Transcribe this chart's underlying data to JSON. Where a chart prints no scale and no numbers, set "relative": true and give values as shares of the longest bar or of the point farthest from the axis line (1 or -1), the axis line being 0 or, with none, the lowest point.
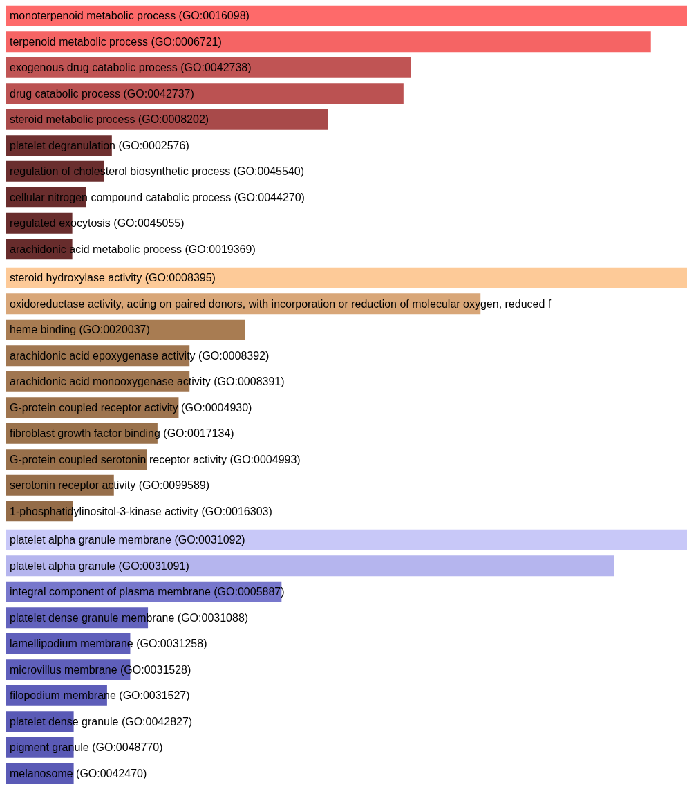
{
  "chart_data": [
    {
      "type": "bar",
      "orientation": "horizontal",
      "relative": true,
      "categories": [
        "monoterpenoid metabolic process (GO:0016098)",
        "terpenoid metabolic process (GO:0006721)",
        "exogenous drug catabolic process (GO:0042738)",
        "drug catabolic process (GO:0042737)",
        "steroid metabolic process (GO:0008202)",
        "platelet degranulation (GO:0002576)",
        "regulation of cholesterol biosynthetic process (GO:0045540)",
        "cellular nitrogen compound catabolic process (GO:0044270)",
        "regulated exocytosis (GO:0045055)",
        "arachidonic acid metabolic process (GO:0019369)"
      ],
      "values": [
        1,
        0.947,
        0.595,
        0.584,
        0.473,
        0.156,
        0.145,
        0.118,
        0.098,
        0.098
      ],
      "colors": [
        "#fe6a6a",
        "#f56464",
        "#c05454",
        "#bb5252",
        "#a84a4a",
        "#6e3030",
        "#6a2e2e",
        "#692d2d",
        "#682d2d",
        "#672c2c"
      ]
    },
    {
      "type": "bar",
      "orientation": "horizontal",
      "relative": true,
      "categories": [
        "steroid hydroxylase activity (GO:0008395)",
        "oxidoreductase activity, acting on paired donors, with incorporation or reduction of molecular oxygen, reduced f",
        "heme binding (GO:0020037)",
        "arachidonic acid epoxygenase activity (GO:0008392)",
        "arachidonic acid monooxygenase activity (GO:0008391)",
        "G-protein coupled receptor activity (GO:0004930)",
        "fibroblast growth factor binding (GO:0017134)",
        "G-protein coupled serotonin receptor activity (GO:0004993)",
        "serotonin receptor activity (GO:0099589)",
        "1-phosphatidylinositol-3-kinase activity (GO:0016303)"
      ],
      "values": [
        1,
        0.697,
        0.351,
        0.27,
        0.27,
        0.254,
        0.223,
        0.207,
        0.159,
        0.099
      ],
      "colors": [
        "#fdca98",
        "#d8a678",
        "#a87c52",
        "#a07650",
        "#a07650",
        "#9e744e",
        "#9a724c",
        "#98704b",
        "#966e4a",
        "#946c48"
      ]
    },
    {
      "type": "bar",
      "orientation": "horizontal",
      "relative": true,
      "categories": [
        "platelet alpha granule membrane (GO:0031092)",
        "platelet alpha granule (GO:0031091)",
        "integral component of plasma membrane (GO:0005887)",
        "platelet dense granule membrane (GO:0031088)",
        "lamellipodium membrane (GO:0031258)",
        "microvillus membrane (GO:0031528)",
        "filopodium membrane (GO:0031527)",
        "platelet dense granule (GO:0042827)",
        "pigment granule (GO:0048770)",
        "melanosome (GO:0042470)"
      ],
      "values": [
        1,
        0.893,
        0.405,
        0.209,
        0.183,
        0.183,
        0.149,
        0.1,
        0.1,
        0.1
      ],
      "colors": [
        "#c8c8f8",
        "#b5b5ee",
        "#7777cc",
        "#6262bd",
        "#5f5fbb",
        "#5f5fbb",
        "#5d5db9",
        "#5a5ab6",
        "#5a5ab6",
        "#5a5ab6"
      ]
    }
  ]
}
